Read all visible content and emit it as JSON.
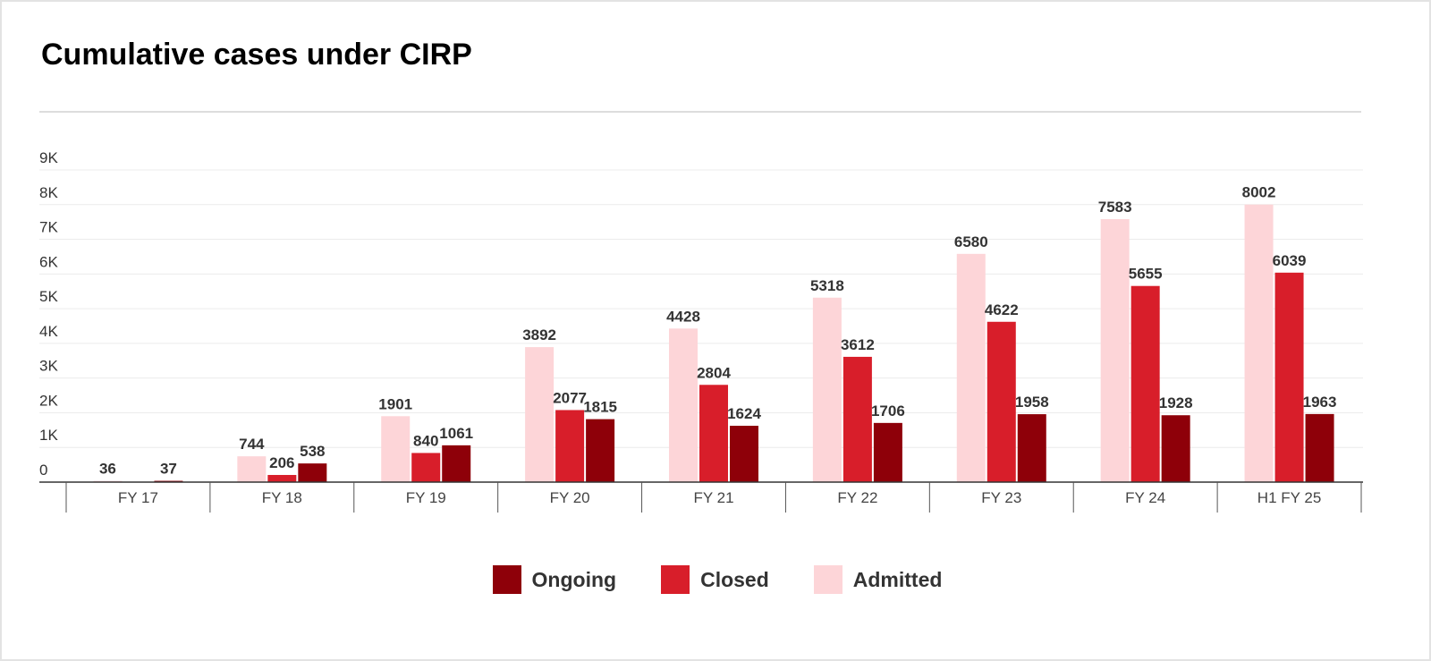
{
  "title": "Cumulative cases under CIRP",
  "chart_data": {
    "type": "bar",
    "title": "Cumulative cases under CIRP",
    "xlabel": "",
    "ylabel": "",
    "categories": [
      "FY 17",
      "FY 18",
      "FY 19",
      "FY 20",
      "FY 21",
      "FY 22",
      "FY 23",
      "FY 24",
      "H1 FY 25"
    ],
    "series": [
      {
        "name": "Admitted",
        "color": "#fdd5d8",
        "values": [
          36,
          744,
          1901,
          3892,
          4428,
          5318,
          6580,
          7583,
          8002
        ]
      },
      {
        "name": "Closed",
        "color": "#d81e2a",
        "values": [
          0,
          206,
          840,
          2077,
          2804,
          3612,
          4622,
          5655,
          6039
        ]
      },
      {
        "name": "Ongoing",
        "color": "#8e0009",
        "values": [
          37,
          538,
          1061,
          1815,
          1624,
          1706,
          1958,
          1928,
          1963
        ]
      }
    ],
    "ylim": [
      0,
      9000
    ],
    "yticks": [
      {
        "value": 0,
        "label": "0"
      },
      {
        "value": 1000,
        "label": "1K"
      },
      {
        "value": 2000,
        "label": "2K"
      },
      {
        "value": 3000,
        "label": "3K"
      },
      {
        "value": 4000,
        "label": "4K"
      },
      {
        "value": 5000,
        "label": "5K"
      },
      {
        "value": 6000,
        "label": "6K"
      },
      {
        "value": 7000,
        "label": "7K"
      },
      {
        "value": 8000,
        "label": "8K"
      },
      {
        "value": 9000,
        "label": "9K"
      }
    ],
    "grid": true,
    "legend_position": "bottom",
    "legend": [
      {
        "label": "Ongoing",
        "color": "#8e0009"
      },
      {
        "label": "Closed",
        "color": "#d81e2a"
      },
      {
        "label": "Admitted",
        "color": "#fdd5d8"
      }
    ]
  }
}
